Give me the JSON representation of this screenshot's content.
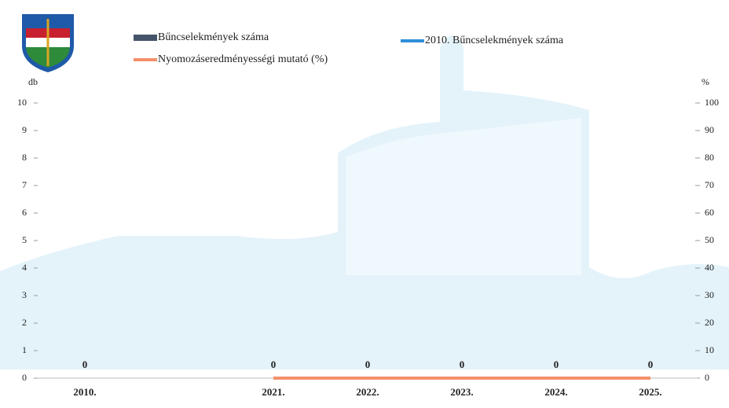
{
  "chart_data": {
    "type": "bar",
    "categories": [
      "2010.",
      null,
      "2021.",
      "2022.",
      "2023.",
      "2024.",
      "2025."
    ],
    "series": [
      {
        "name": "Bűncselekmények száma",
        "type": "bar",
        "color": "#44546a",
        "values": [
          0,
          null,
          0,
          0,
          0,
          0,
          0
        ]
      },
      {
        "name": "2010. Bűncselekmények száma",
        "type": "line",
        "color": "#2e8fd8",
        "values": [
          null,
          null,
          0,
          0,
          0,
          0,
          0
        ]
      },
      {
        "name": "Nyomozáseredményességi mutató (%)",
        "type": "line",
        "axis": "y2",
        "color": "#f4906a",
        "values": [
          null,
          null,
          0,
          0,
          0,
          0,
          0
        ]
      }
    ],
    "y_label": "db",
    "y2_label": "%",
    "ylim": [
      0,
      10
    ],
    "yticks": [
      0,
      1,
      2,
      3,
      4,
      5,
      6,
      7,
      8,
      9,
      10
    ],
    "y2lim": [
      0,
      100
    ],
    "y2ticks": [
      0,
      10,
      20,
      30,
      40,
      50,
      60,
      70,
      80,
      90,
      100
    ]
  }
}
